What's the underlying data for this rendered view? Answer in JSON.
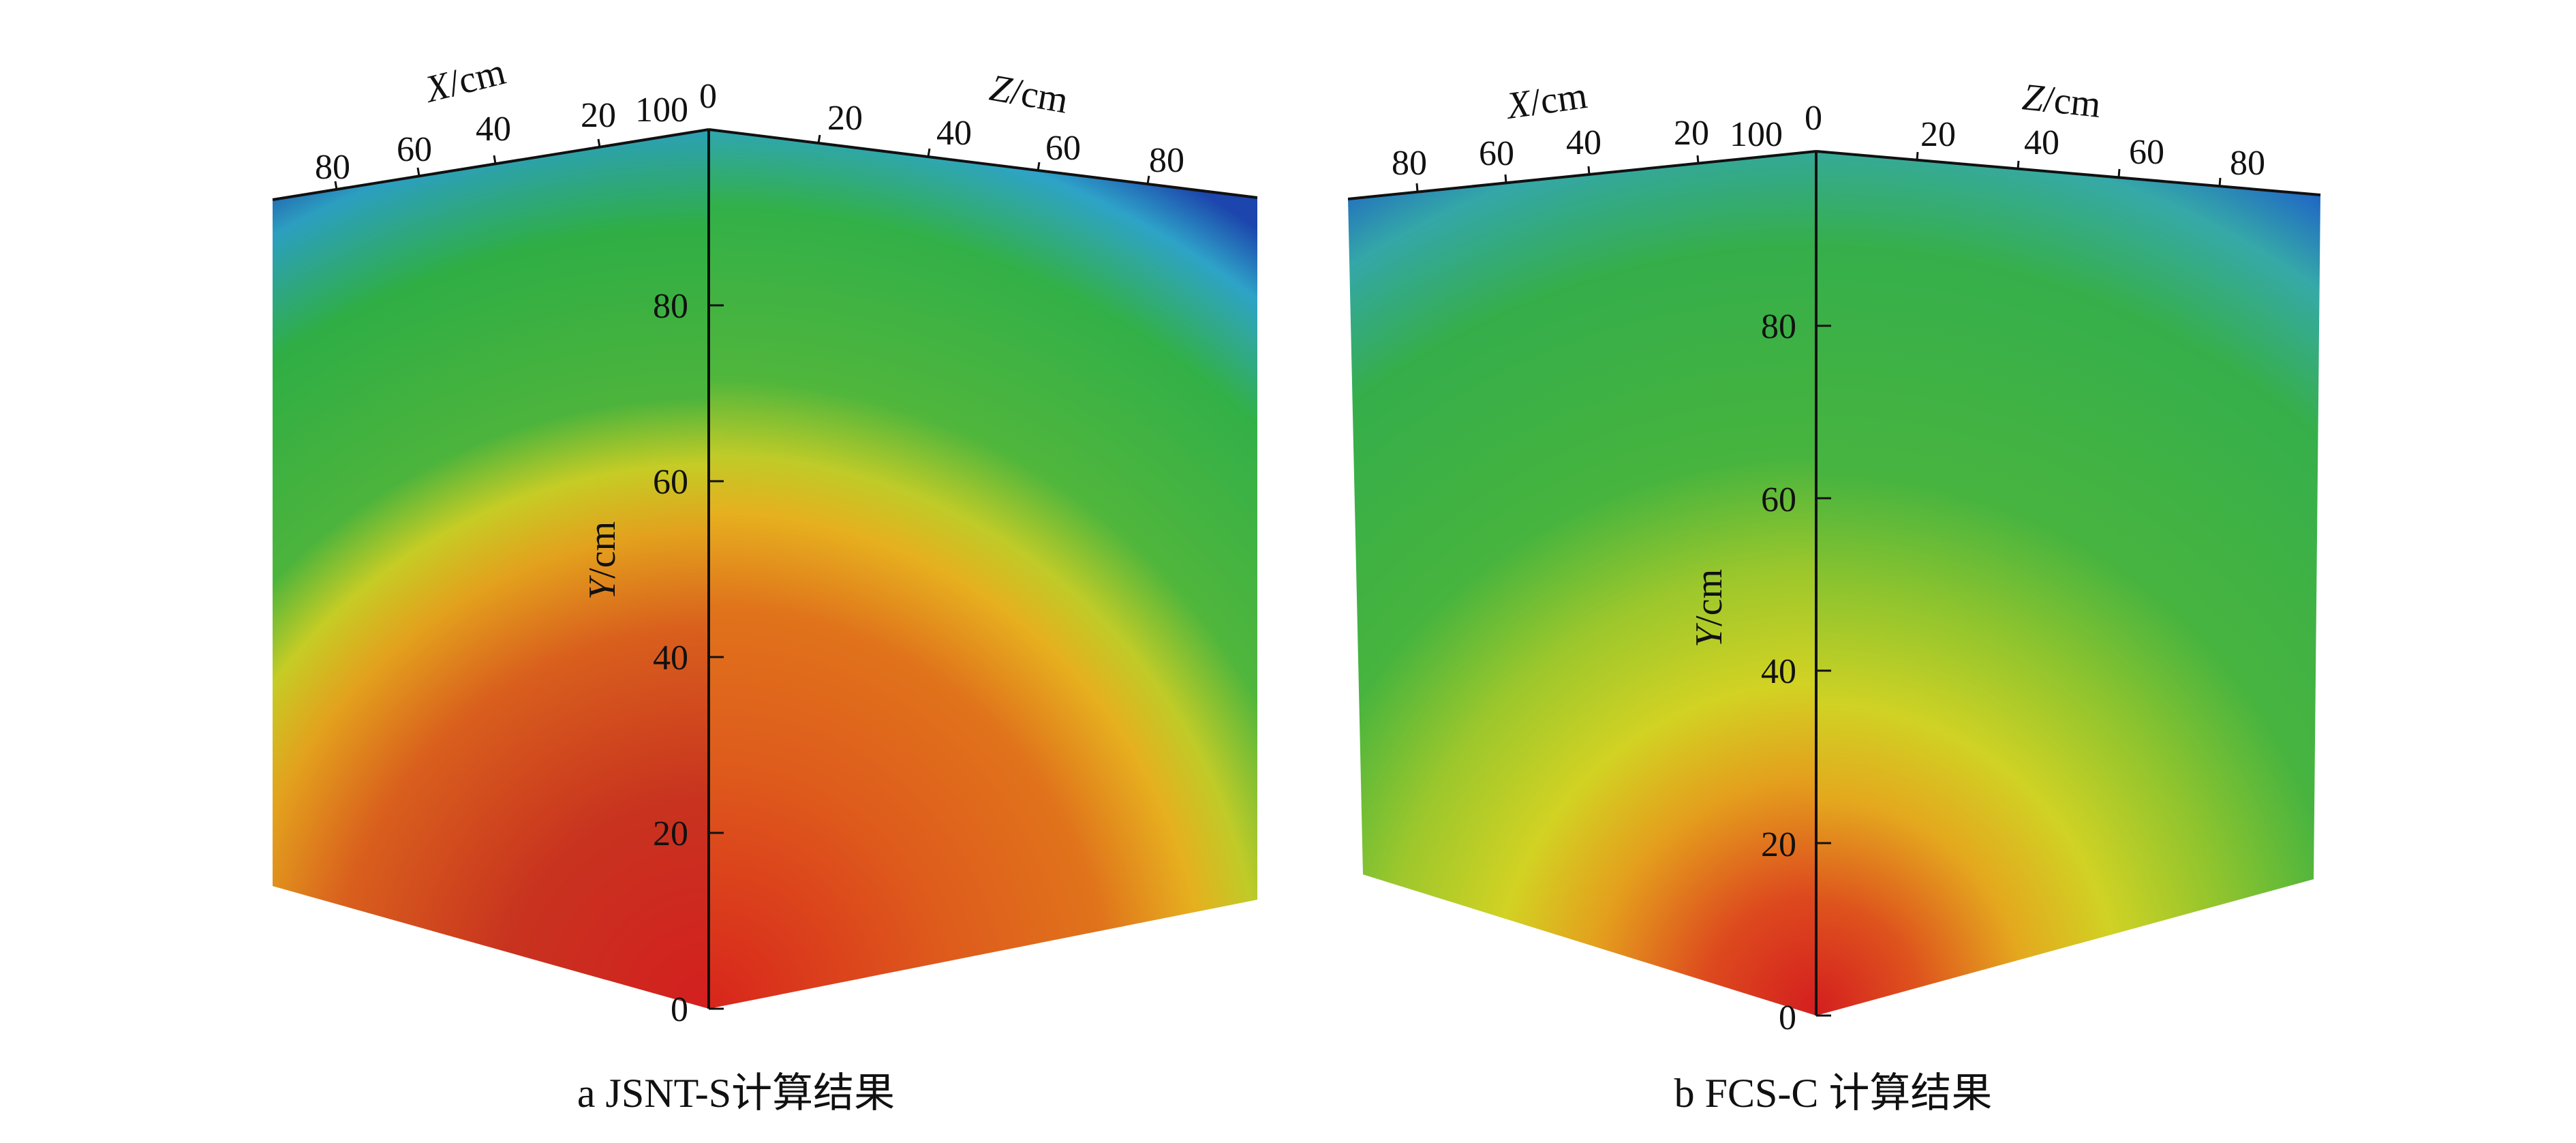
{
  "chart_data": [
    {
      "type": "heatmap",
      "caption": "a JSNT-S计算结果",
      "x_axis": {
        "label_var": "X",
        "label_unit": "/cm",
        "range": [
          0,
          100
        ],
        "ticks": [
          80,
          60,
          40,
          20,
          100
        ]
      },
      "z_axis": {
        "label_var": "Z",
        "label_unit": "/cm",
        "range": [
          0,
          100
        ],
        "ticks": [
          0,
          20,
          40,
          60,
          80
        ]
      },
      "y_axis": {
        "label_var": "Y",
        "label_unit": "/cm",
        "range": [
          0,
          100
        ],
        "ticks": [
          0,
          20,
          40,
          60,
          80
        ]
      },
      "hotspot": {
        "x": 0,
        "y": 0,
        "z": 0
      },
      "colors": [
        "#d41f1f",
        "#e06a1c",
        "#e8c21e",
        "#30b040",
        "#2a9be0",
        "#1a3aa8"
      ]
    },
    {
      "type": "heatmap",
      "caption": "b  FCS-C 计算结果",
      "x_axis": {
        "label_var": "X",
        "label_unit": "/cm",
        "range": [
          0,
          100
        ],
        "ticks": [
          80,
          60,
          40,
          20,
          100
        ]
      },
      "z_axis": {
        "label_var": "Z",
        "label_unit": "/cm",
        "range": [
          0,
          100
        ],
        "ticks": [
          0,
          20,
          40,
          60,
          80
        ]
      },
      "y_axis": {
        "label_var": "Y",
        "label_unit": "/cm",
        "range": [
          0,
          100
        ],
        "ticks": [
          0,
          20,
          40,
          60,
          80
        ]
      },
      "hotspot": {
        "x": 0,
        "y": 0,
        "z": 0
      },
      "colors": [
        "#d41f1f",
        "#e2a21c",
        "#d7d423",
        "#30b040",
        "#2a9be0",
        "#1a3aa8"
      ]
    }
  ]
}
